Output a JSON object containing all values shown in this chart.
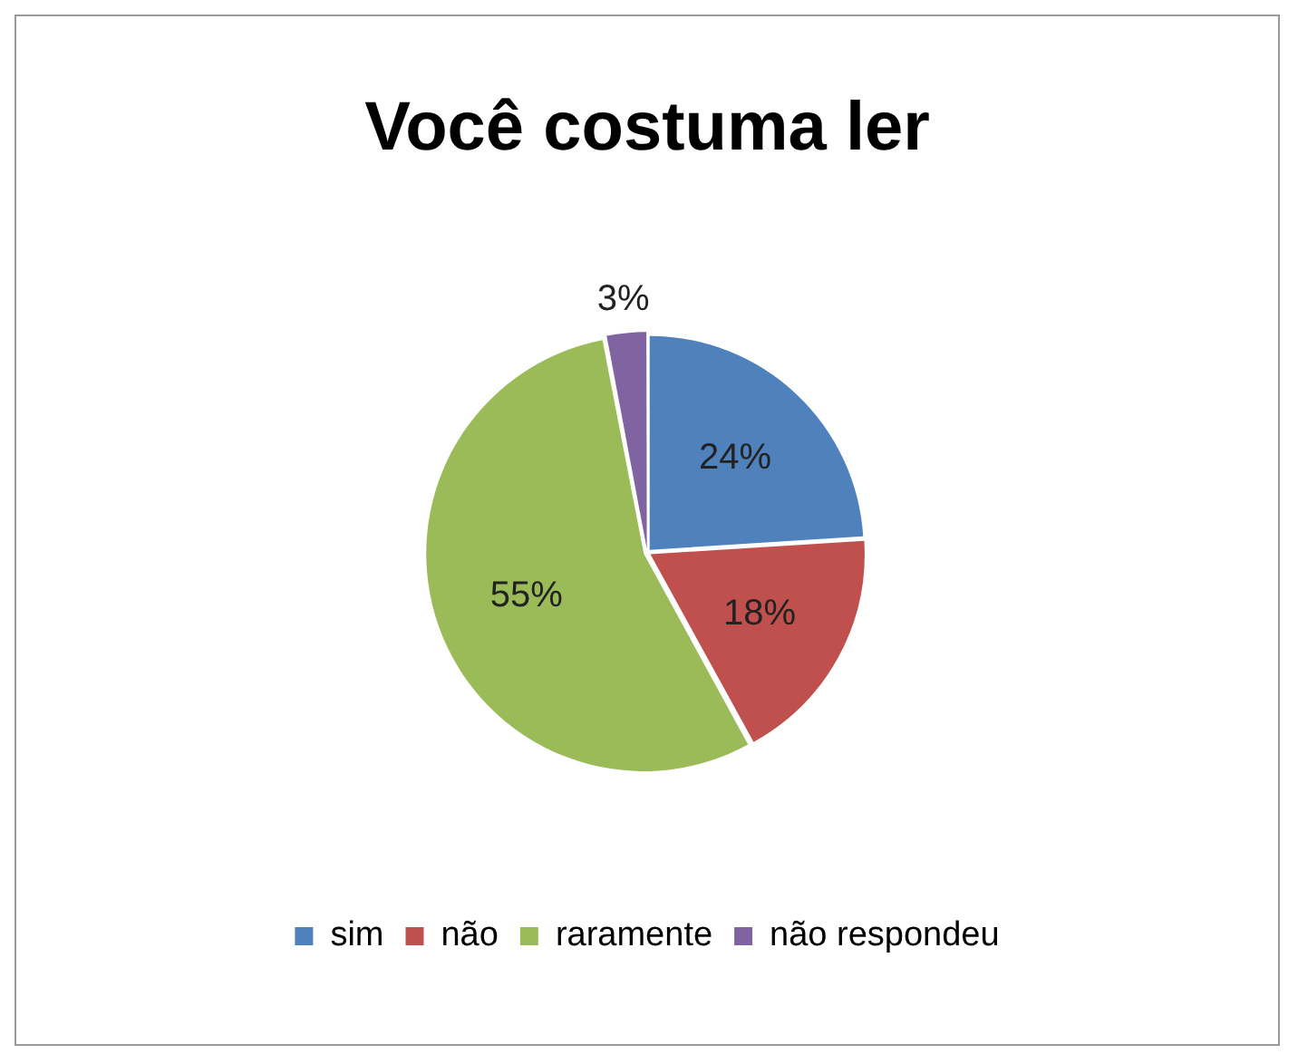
{
  "chart_data": {
    "type": "pie",
    "title": "Você costuma ler",
    "categories": [
      "sim",
      "não",
      "raramente",
      "não respondeu"
    ],
    "values": [
      24,
      18,
      55,
      3
    ],
    "value_labels": [
      "24%",
      "18%",
      "55%",
      "3%"
    ],
    "colors": [
      "#4f81bd",
      "#c0504d",
      "#9bbb59",
      "#8064a2"
    ],
    "legend": "bottom"
  }
}
